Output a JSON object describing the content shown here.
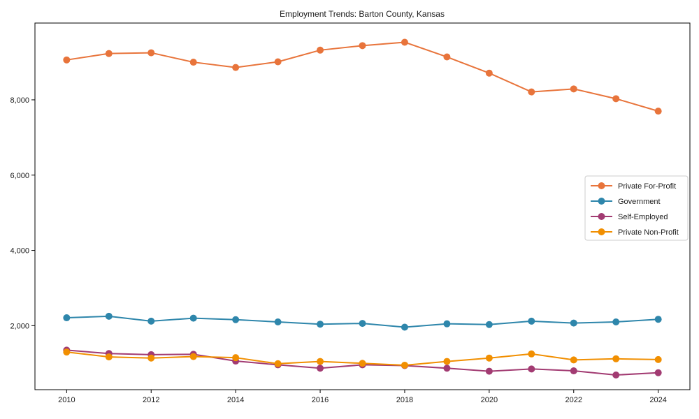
{
  "window": {
    "background": "#ffffff",
    "frame_color": "#000000",
    "legend_border_color": "#cccccc"
  },
  "chart_data": {
    "type": "line",
    "title": "Employment Trends: Barton County, Kansas",
    "xlabel": "",
    "ylabel": "",
    "grid": false,
    "legend_position": "right",
    "xlim": [
      2009.25,
      2024.75
    ],
    "ylim": [
      300,
      10040
    ],
    "xticks": [
      2010,
      2012,
      2014,
      2016,
      2018,
      2020,
      2022,
      2024
    ],
    "xtick_labels": [
      "2010",
      "2012",
      "2014",
      "2016",
      "2018",
      "2020",
      "2022",
      "2024"
    ],
    "yticks": [
      2000,
      4000,
      6000,
      8000
    ],
    "ytick_labels": [
      "2,000",
      "4,000",
      "6,000",
      "8,000"
    ],
    "x": [
      2010,
      2011,
      2012,
      2013,
      2014,
      2015,
      2016,
      2017,
      2018,
      2019,
      2020,
      2021,
      2022,
      2023,
      2024
    ],
    "series": [
      {
        "name": "Private For-Profit",
        "color": "#E8743B",
        "values": [
          9060,
          9230,
          9250,
          9000,
          8860,
          9010,
          9320,
          9440,
          9530,
          9140,
          8710,
          8210,
          8290,
          8030,
          7700
        ]
      },
      {
        "name": "Government",
        "color": "#2E86AB",
        "values": [
          2210,
          2250,
          2120,
          2200,
          2160,
          2100,
          2040,
          2060,
          1960,
          2050,
          2030,
          2120,
          2070,
          2100,
          2170
        ]
      },
      {
        "name": "Self-Employed",
        "color": "#A23B72",
        "values": [
          1350,
          1260,
          1230,
          1240,
          1060,
          960,
          870,
          960,
          940,
          870,
          790,
          850,
          800,
          690,
          750
        ]
      },
      {
        "name": "Private Non-Profit",
        "color": "#F18F01",
        "values": [
          1300,
          1170,
          1140,
          1180,
          1150,
          990,
          1050,
          1000,
          950,
          1050,
          1140,
          1250,
          1090,
          1120,
          1100
        ]
      }
    ]
  }
}
